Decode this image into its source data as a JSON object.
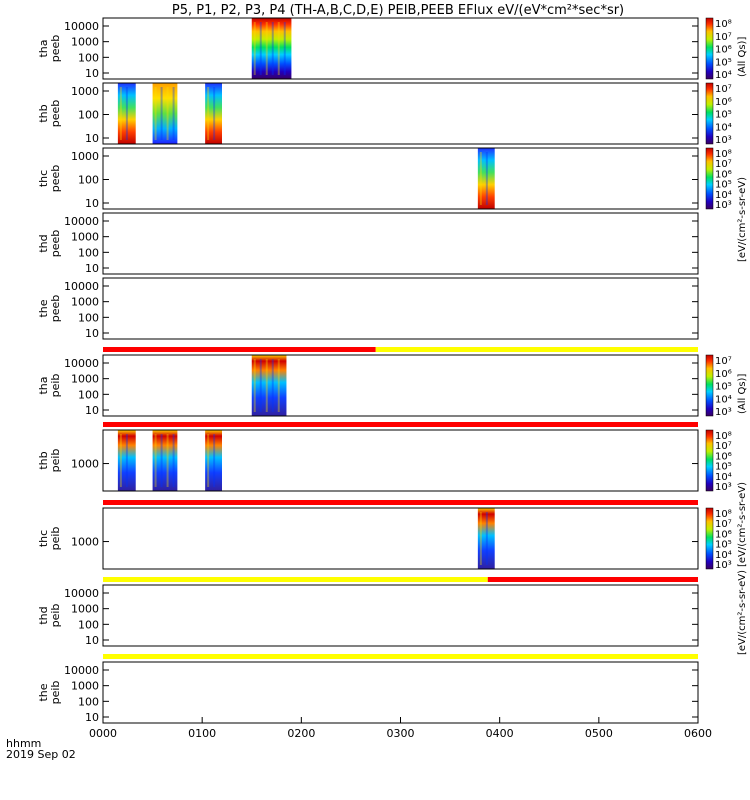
{
  "title": "P5, P1, P2, P3, P4 (TH-A,B,C,D,E) PEIB,PEEB EFlux eV/(eV*cm²*sec*sr)",
  "chart_data": {
    "type": "heatmap",
    "x_ticks": [
      "0000",
      "0100",
      "0200",
      "0300",
      "0400",
      "0500",
      "0600"
    ],
    "x_range_hours": [
      0,
      6
    ],
    "date_label": "2019 Sep 02",
    "time_label": "hhmm",
    "log_y": true,
    "colormap": "rainbow",
    "panels": [
      {
        "probe": "tha",
        "label1": "tha",
        "label2": "peeb",
        "y_ticks": [
          "10000",
          "1000",
          "100",
          "10"
        ],
        "blocks": [
          [
            1.5,
            1.9
          ]
        ],
        "colorbar": true,
        "cb_ticks": [
          "10⁸",
          "10⁷",
          "10⁶",
          "10⁵",
          "10⁴"
        ],
        "cb_label": "(All Qs)]"
      },
      {
        "probe": "thb",
        "label1": "thb",
        "label2": "peeb",
        "y_ticks": [
          "1000",
          "100",
          "10"
        ],
        "blocks": [
          [
            0.15,
            0.33
          ],
          [
            0.5,
            0.75
          ],
          [
            1.03,
            1.2
          ]
        ],
        "colorbar": true,
        "cb_ticks": [
          "10⁷",
          "10⁶",
          "10⁵",
          "10⁴",
          "10³"
        ]
      },
      {
        "probe": "thc",
        "label1": "thc",
        "label2": "peeb",
        "y_ticks": [
          "1000",
          "100",
          "10"
        ],
        "blocks": [
          [
            3.78,
            3.95
          ]
        ],
        "colorbar": true,
        "cb_ticks": [
          "10⁸",
          "10⁷",
          "10⁶",
          "10⁵",
          "10⁴",
          "10³"
        ]
      },
      {
        "probe": "thd",
        "label1": "thd",
        "label2": "peeb",
        "y_ticks": [
          "10000",
          "1000",
          "100",
          "10"
        ],
        "blocks": [],
        "colorbar": false
      },
      {
        "probe": "the",
        "label1": "the",
        "label2": "peeb",
        "y_ticks": [
          "10000",
          "1000",
          "100",
          "10"
        ],
        "blocks": [],
        "colorbar": false
      },
      {
        "probe": "tha",
        "label1": "tha",
        "label2": "peib",
        "y_ticks": [
          "10000",
          "1000",
          "100",
          "10"
        ],
        "blocks": [
          [
            1.5,
            1.85
          ]
        ],
        "colorbar": true,
        "cb_ticks": [
          "10⁷",
          "10⁶",
          "10⁵",
          "10⁴",
          "10³"
        ],
        "cb_label": "(All Qs)]",
        "status_bar": {
          "segments": [
            {
              "from": 0,
              "to": 2.75,
              "color": "red"
            },
            {
              "from": 2.75,
              "to": 6,
              "color": "yellow"
            }
          ]
        }
      },
      {
        "probe": "thb",
        "label1": "thb",
        "label2": "peib",
        "y_ticks": [
          "1000"
        ],
        "blocks": [
          [
            0.15,
            0.33
          ],
          [
            0.5,
            0.75
          ],
          [
            1.03,
            1.2
          ]
        ],
        "colorbar": true,
        "cb_ticks": [
          "10⁸",
          "10⁷",
          "10⁶",
          "10⁵",
          "10⁴",
          "10³"
        ],
        "status_bar": {
          "segments": [
            {
              "from": 0,
              "to": 6,
              "color": "red"
            }
          ]
        }
      },
      {
        "probe": "thc",
        "label1": "thc",
        "label2": "peib",
        "y_ticks": [
          "1000"
        ],
        "blocks": [
          [
            3.78,
            3.95
          ]
        ],
        "colorbar": true,
        "cb_ticks": [
          "10⁸",
          "10⁷",
          "10⁶",
          "10⁵",
          "10⁴",
          "10³"
        ],
        "cb_label": "[eV/(cm²-s-sr-eV)",
        "status_bar": {
          "segments": [
            {
              "from": 0,
              "to": 6,
              "color": "red"
            }
          ]
        }
      },
      {
        "probe": "thd",
        "label1": "thd",
        "label2": "peib",
        "y_ticks": [
          "10000",
          "1000",
          "100",
          "10"
        ],
        "blocks": [],
        "colorbar": false,
        "status_bar": {
          "segments": [
            {
              "from": 0,
              "to": 3.88,
              "color": "yellow"
            },
            {
              "from": 3.88,
              "to": 6,
              "color": "red"
            }
          ]
        }
      },
      {
        "probe": "the",
        "label1": "the",
        "label2": "peib",
        "y_ticks": [
          "10000",
          "1000",
          "100",
          "10"
        ],
        "blocks": [],
        "colorbar": false,
        "status_bar": {
          "segments": [
            {
              "from": 0,
              "to": 6,
              "color": "yellow"
            }
          ]
        }
      }
    ],
    "side_label_top": "[eV/(cm²-s-sr-eV)",
    "side_label_bottom": "[eV/(cm²-s-sr-eV)"
  }
}
